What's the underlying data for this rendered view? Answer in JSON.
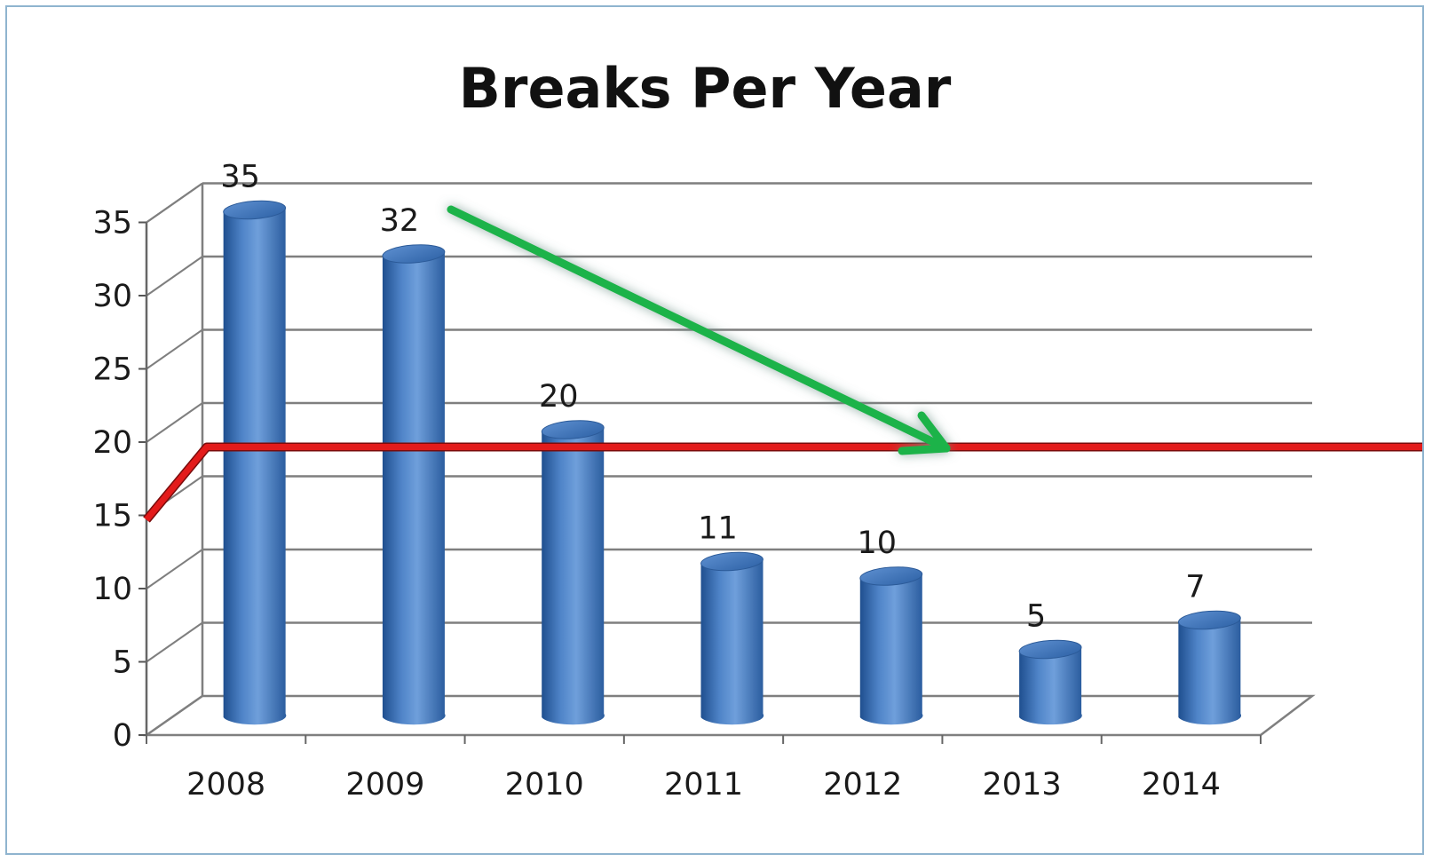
{
  "chart_data": {
    "type": "bar",
    "title": "Breaks Per Year",
    "categories": [
      "2008",
      "2009",
      "2010",
      "2011",
      "2012",
      "2013",
      "2014"
    ],
    "values": [
      35,
      32,
      20,
      11,
      10,
      5,
      7
    ],
    "data_labels": [
      "35",
      "32",
      "20",
      "11",
      "10",
      "5",
      "7"
    ],
    "xlabel": "",
    "ylabel": "",
    "ylim": [
      0,
      35
    ],
    "yticks": [
      "0",
      "5",
      "10",
      "15",
      "20",
      "25",
      "30",
      "35"
    ],
    "grid": true,
    "bar_style": "3d-cylinder",
    "reference_line": {
      "value": 17,
      "color": "#e31b1b"
    },
    "trend_arrow": {
      "direction": "downward",
      "color": "#1db34a"
    },
    "colors": {
      "bar": "#3f73b8",
      "bar_dark": "#1f4f8f",
      "bar_light": "#6f9fdb",
      "grid": "#7f7f7f",
      "frame": "#8fb4cf"
    }
  }
}
